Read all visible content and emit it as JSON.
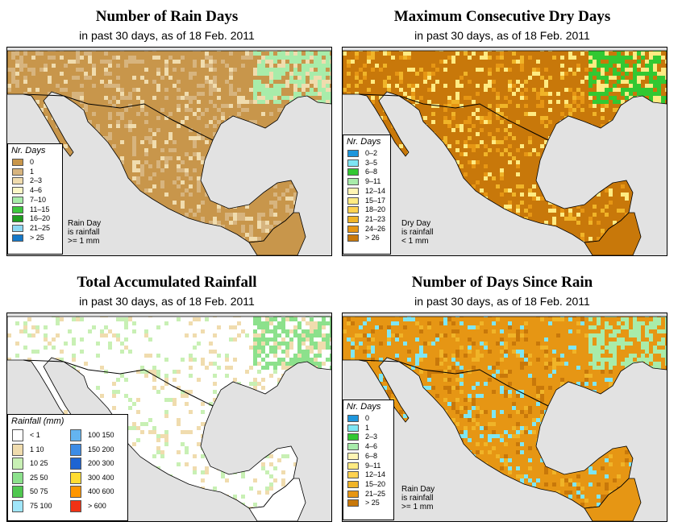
{
  "panels": [
    {
      "id": "rain-days",
      "title": "Number of Rain Days",
      "subtitle": "in past 30 days, as of  18 Feb. 2011",
      "legend_title": "Nr. Days",
      "legend": [
        {
          "label": "0",
          "color": "#c8964b"
        },
        {
          "label": "1",
          "color": "#d7b47e"
        },
        {
          "label": "2–3",
          "color": "#f0dcae"
        },
        {
          "label": "4–6",
          "color": "#fcf7c7"
        },
        {
          "label": "7–10",
          "color": "#a8ecaa"
        },
        {
          "label": "11–15",
          "color": "#3cc83c"
        },
        {
          "label": "16–20",
          "color": "#1e9e1e"
        },
        {
          "label": "21–25",
          "color": "#8cd7f3"
        },
        {
          "label": "> 25",
          "color": "#1478c8"
        }
      ],
      "note": "Rain Day\nis rainfall\n>= 1 mm",
      "land_color": "#c8964b",
      "speckle": [
        "#d7b47e",
        "#d7b47e",
        "#f0dcae",
        "#c8964b"
      ],
      "ne_accent": "#a8ecaa"
    },
    {
      "id": "dry-days",
      "title": "Maximum Consecutive Dry Days",
      "subtitle": "in past 30 days, as of  18 Feb. 2011",
      "legend_title": "Nr. Days",
      "legend": [
        {
          "label": "0–2",
          "color": "#1e96dc"
        },
        {
          "label": "3–5",
          "color": "#7ee6f4"
        },
        {
          "label": "6–8",
          "color": "#32c832"
        },
        {
          "label": "9–11",
          "color": "#a8ecaa"
        },
        {
          "label": "12–14",
          "color": "#fff5b4"
        },
        {
          "label": "15–17",
          "color": "#ffeb82"
        },
        {
          "label": "18–20",
          "color": "#ffd250"
        },
        {
          "label": "21–23",
          "color": "#f0b428"
        },
        {
          "label": "24–26",
          "color": "#e69614"
        },
        {
          "label": "> 26",
          "color": "#c8780a"
        }
      ],
      "note": "Dry Day\nis rainfall\n< 1 mm",
      "land_color": "#c8780a",
      "speckle": [
        "#e69614",
        "#f0b428",
        "#ffeb82",
        "#c8780a"
      ],
      "ne_accent": "#32c832"
    },
    {
      "id": "accumulated",
      "title": "Total Accumulated Rainfall",
      "subtitle": "in past 30 days, as of  18 Feb. 2011",
      "legend_title": "Rainfall (mm)",
      "legend": [
        {
          "label": "< 1",
          "color": "#ffffff"
        },
        {
          "label": "1    10",
          "color": "#f0dcae"
        },
        {
          "label": "10    25",
          "color": "#c8f0b4"
        },
        {
          "label": "25    50",
          "color": "#8ce18c"
        },
        {
          "label": "50    75",
          "color": "#50c850"
        },
        {
          "label": "75   100",
          "color": "#a0e6fa"
        },
        {
          "label": "100   150",
          "color": "#64b4f0"
        },
        {
          "label": "150   200",
          "color": "#3c8ce6"
        },
        {
          "label": "200   300",
          "color": "#1e64d2"
        },
        {
          "label": "300   400",
          "color": "#ffdc32"
        },
        {
          "label": "400   600",
          "color": "#ff9600"
        },
        {
          "label": "> 600",
          "color": "#f03214"
        }
      ],
      "note": "",
      "land_color": "#ffffff",
      "speckle": [
        "#ffffff",
        "#ffffff",
        "#f0dcae",
        "#c8f0b4"
      ],
      "ne_accent": "#8ce18c"
    },
    {
      "id": "since-rain",
      "title": "Number of Days Since Rain",
      "subtitle": "in past 30 days, as of  18 Feb. 2011",
      "legend_title": "Nr. Days",
      "legend": [
        {
          "label": "0",
          "color": "#1e96dc"
        },
        {
          "label": "1",
          "color": "#7ee6f4"
        },
        {
          "label": "2–3",
          "color": "#32c832"
        },
        {
          "label": "4–6",
          "color": "#a8ecaa"
        },
        {
          "label": "6–8",
          "color": "#fff5b4"
        },
        {
          "label": "9–11",
          "color": "#ffeb82"
        },
        {
          "label": "12–14",
          "color": "#ffd250"
        },
        {
          "label": "15–20",
          "color": "#f0b428"
        },
        {
          "label": "21–25",
          "color": "#e69614"
        },
        {
          "label": "> 25",
          "color": "#c8780a"
        }
      ],
      "note": "Rain Day\nis rainfall\n>= 1 mm",
      "land_color": "#e69614",
      "speckle": [
        "#c8780a",
        "#f0b428",
        "#e69614",
        "#7ee6f4"
      ],
      "ne_accent": "#a8ecaa"
    }
  ]
}
